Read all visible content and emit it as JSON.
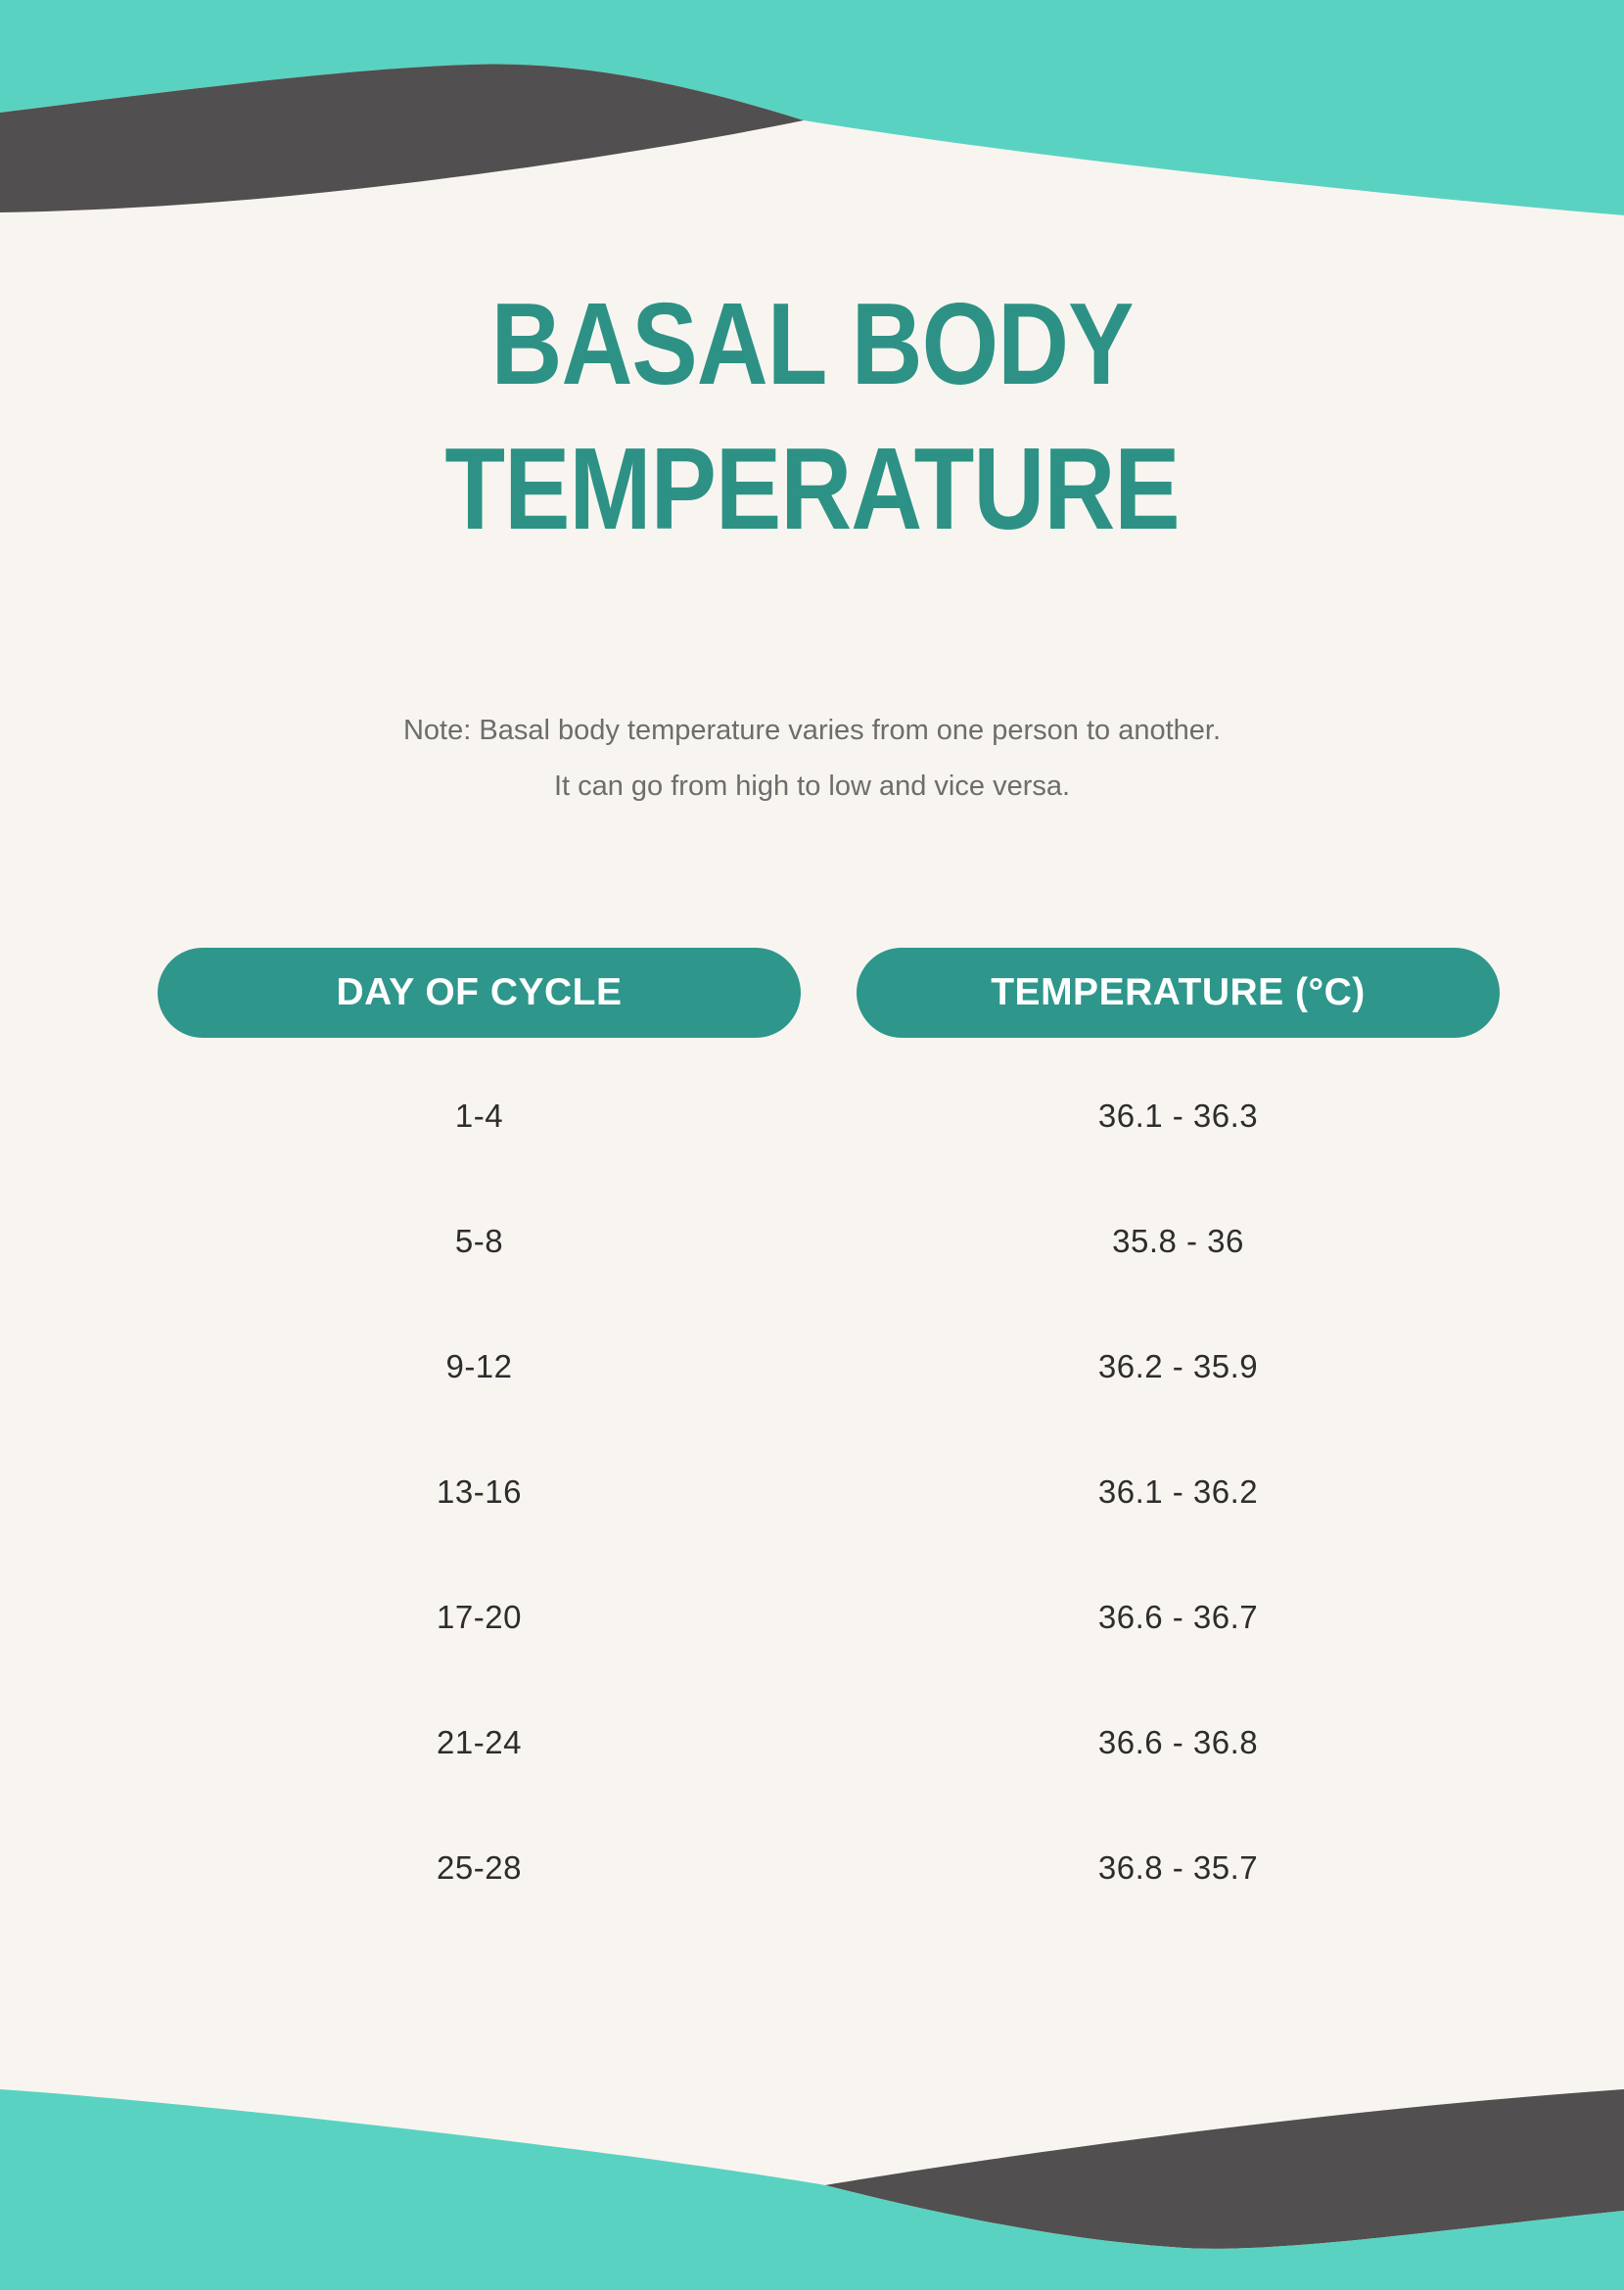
{
  "page": {
    "title": {
      "line1": "BASAL BODY",
      "line2": "TEMPERATURE"
    },
    "note": {
      "line1": "Note: Basal body temperature varies from one person to another.",
      "line2": "It can go from high to low and vice versa."
    }
  },
  "table": {
    "headers": [
      "DAY OF CYCLE",
      "TEMPERATURE (°C)"
    ],
    "rows": [
      {
        "day": "1-4",
        "temp": "36.1 - 36.3"
      },
      {
        "day": "5-8",
        "temp": "35.8 - 36"
      },
      {
        "day": "9-12",
        "temp": "36.2 - 35.9"
      },
      {
        "day": "13-16",
        "temp": "36.1 - 36.2"
      },
      {
        "day": "17-20",
        "temp": "36.6 - 36.7"
      },
      {
        "day": "21-24",
        "temp": "36.6 - 36.8"
      },
      {
        "day": "25-28",
        "temp": "36.8 - 35.7"
      }
    ]
  },
  "colors": {
    "teal": "#5AD2C1",
    "dark_gray": "#524F50",
    "cream": "#F8F5F0",
    "accent_teal": "#2E968B",
    "title_teal": "#2D9285",
    "note_gray": "#6D6D6D",
    "text_dark": "#2E2C2C"
  },
  "chart_data": {
    "type": "table",
    "title": "BASAL BODY TEMPERATURE",
    "columns": [
      "DAY OF CYCLE",
      "TEMPERATURE (°C)"
    ],
    "rows": [
      [
        "1-4",
        "36.1 - 36.3"
      ],
      [
        "5-8",
        "35.8 - 36"
      ],
      [
        "9-12",
        "36.2 - 35.9"
      ],
      [
        "13-16",
        "36.1 - 36.2"
      ],
      [
        "17-20",
        "36.6 - 36.7"
      ],
      [
        "21-24",
        "36.6 - 36.8"
      ],
      [
        "25-28",
        "36.8 - 35.7"
      ]
    ]
  }
}
